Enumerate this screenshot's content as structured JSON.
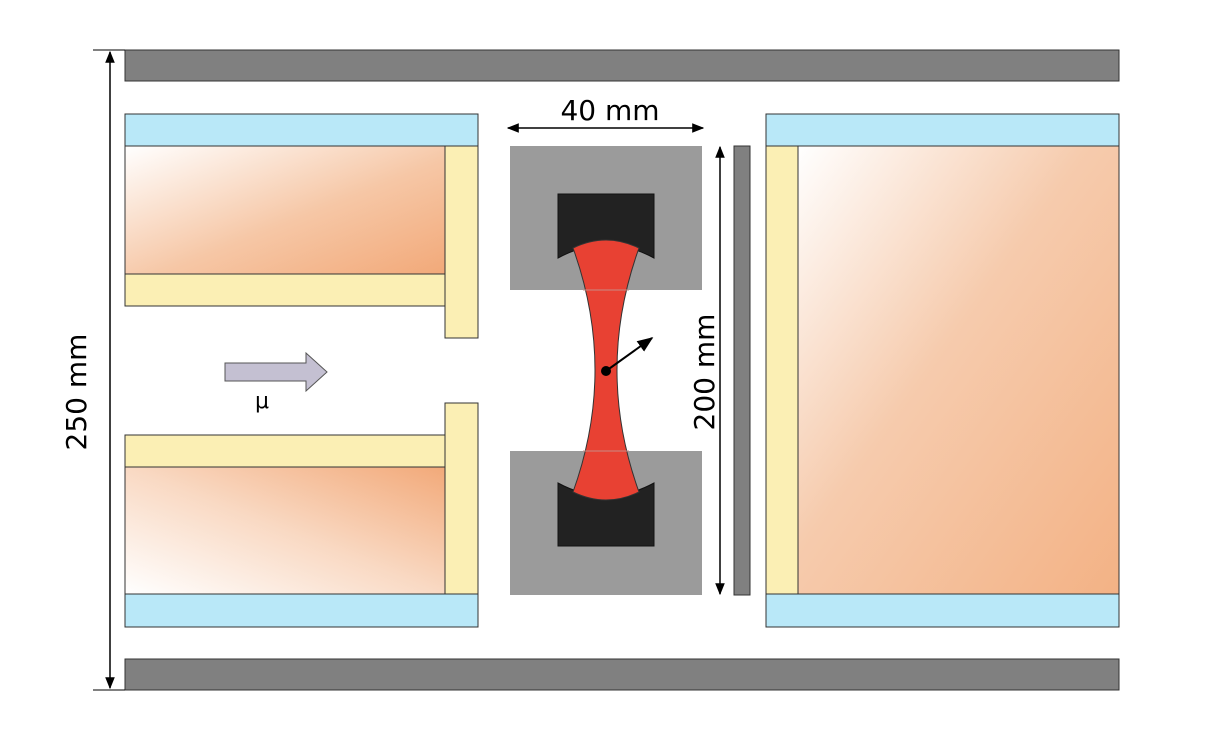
{
  "labels": {
    "width_dimension": "40 mm",
    "height_inner_dimension": "200 mm",
    "height_outer_dimension": "250 mm",
    "beam_label": "μ"
  },
  "colors": {
    "frame_gray": "#808080",
    "shield_blue": "#b9e8f8",
    "spacer_yellow": "#fbefb4",
    "copper_orange": "#f2a979",
    "holder_gray": "#9b9b9b",
    "clamp_black": "#222222",
    "sample_red": "#e84133",
    "beam_arrow": "#c4c0d2"
  }
}
